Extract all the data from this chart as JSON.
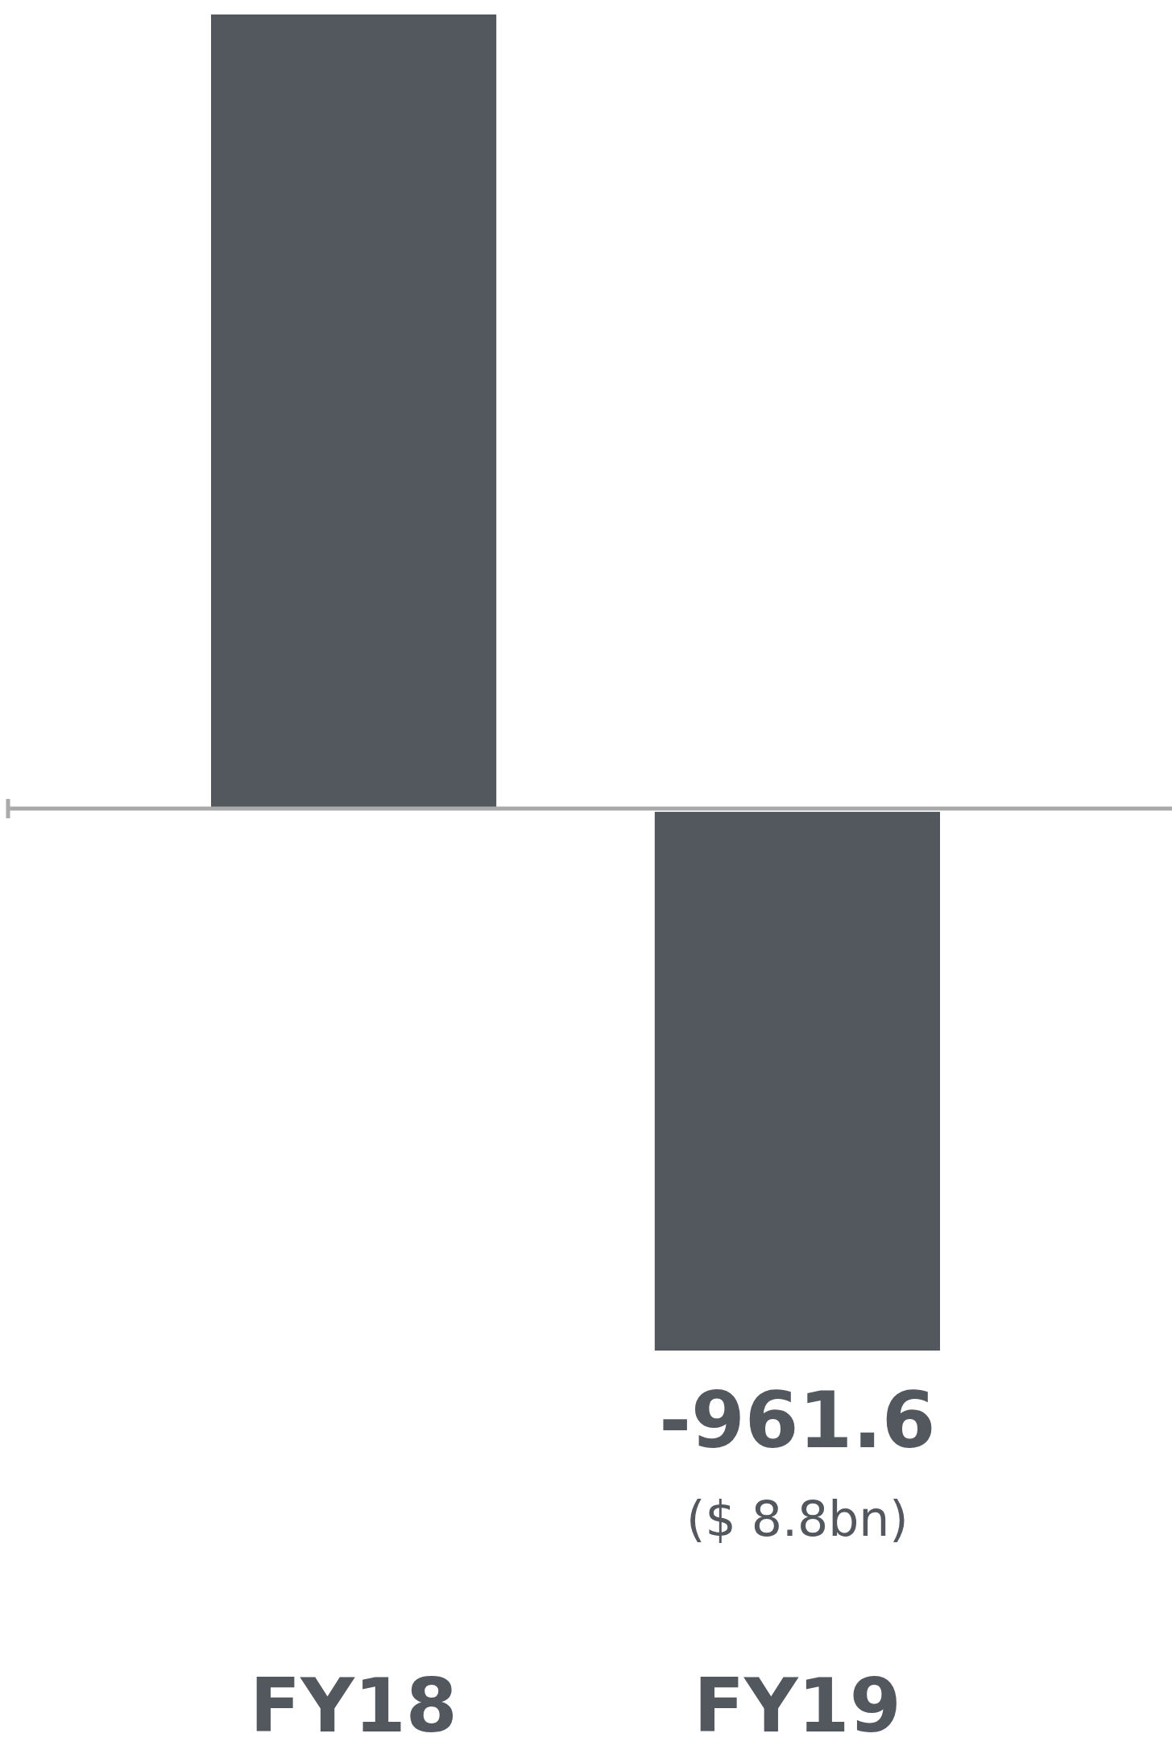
{
  "chart_data": {
    "type": "bar",
    "categories": [
      "FY18",
      "FY19"
    ],
    "values": [
      1402,
      -961.6
    ],
    "color": "#53585f",
    "value_labels": [
      null,
      "-961.6"
    ],
    "annotations": [
      {
        "text": "($ 8.8bn)",
        "x": "FY19",
        "y": -961.6
      }
    ]
  }
}
